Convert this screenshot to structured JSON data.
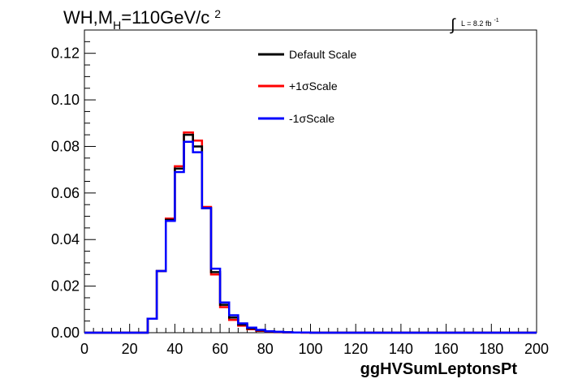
{
  "chart_data": {
    "type": "line",
    "title_parts": {
      "main": "WH,M",
      "sub": "H",
      "rest": "=110GeV/c",
      "sup": "2"
    },
    "lumi": {
      "integral": "∫",
      "text": "L = 8.2 fb",
      "sup": "-1"
    },
    "xlabel": "ggHVSumLeptonsPt",
    "ylabel": "",
    "xlim": [
      0,
      200
    ],
    "ylim": [
      0,
      0.13
    ],
    "x_ticks": [
      "0",
      "20",
      "40",
      "60",
      "80",
      "100",
      "120",
      "140",
      "160",
      "180",
      "200"
    ],
    "y_ticks": [
      "0.00",
      "0.02",
      "0.04",
      "0.06",
      "0.08",
      "0.10",
      "0.12"
    ],
    "bin_edges": [
      0,
      4,
      8,
      12,
      16,
      20,
      24,
      28,
      32,
      36,
      40,
      44,
      48,
      52,
      56,
      60,
      64,
      68,
      72,
      76,
      80,
      84,
      88,
      92,
      96,
      100,
      104,
      108,
      112,
      116,
      120,
      124,
      128,
      132,
      136,
      140,
      144,
      148,
      152,
      156,
      160,
      164,
      168,
      172,
      176,
      180,
      184,
      188,
      192,
      196,
      200
    ],
    "grid": false,
    "legend_position": "top-center",
    "series": [
      {
        "name": "Default Scale",
        "color": "#000000",
        "values": [
          0,
          0,
          0,
          0,
          0,
          0,
          0,
          0.006,
          0.0265,
          0.0485,
          0.0705,
          0.085,
          0.08,
          0.0535,
          0.026,
          0.012,
          0.0065,
          0.0035,
          0.0018,
          0.001,
          0.0005,
          0.0003,
          0.0002,
          0.0001,
          0.0001,
          0,
          0,
          0,
          0,
          0,
          0,
          0,
          0,
          0,
          0,
          0,
          0,
          0,
          0,
          0,
          0,
          0,
          0,
          0,
          0,
          0,
          0,
          0,
          0,
          0
        ]
      },
      {
        "name": "+1σScale",
        "color": "#ff0000",
        "values": [
          0,
          0,
          0,
          0,
          0,
          0,
          0,
          0.006,
          0.0265,
          0.049,
          0.0715,
          0.086,
          0.0825,
          0.054,
          0.025,
          0.011,
          0.0055,
          0.003,
          0.0015,
          0.0008,
          0.0004,
          0.0002,
          0.0001,
          0.0001,
          0,
          0,
          0,
          0,
          0,
          0,
          0,
          0,
          0,
          0,
          0,
          0,
          0,
          0,
          0,
          0,
          0,
          0,
          0,
          0,
          0,
          0,
          0,
          0,
          0,
          0
        ]
      },
      {
        "name": "-1σScale",
        "color": "#0000ff",
        "values": [
          0,
          0,
          0,
          0,
          0,
          0,
          0,
          0.006,
          0.0265,
          0.048,
          0.069,
          0.082,
          0.0775,
          0.0535,
          0.0275,
          0.013,
          0.0075,
          0.004,
          0.0022,
          0.0012,
          0.0006,
          0.0004,
          0.0002,
          0.0001,
          0.0001,
          0,
          0,
          0,
          0,
          0,
          0,
          0,
          0,
          0,
          0,
          0,
          0,
          0,
          0,
          0,
          0,
          0,
          0,
          0,
          0,
          0,
          0,
          0,
          0,
          0
        ]
      }
    ]
  }
}
